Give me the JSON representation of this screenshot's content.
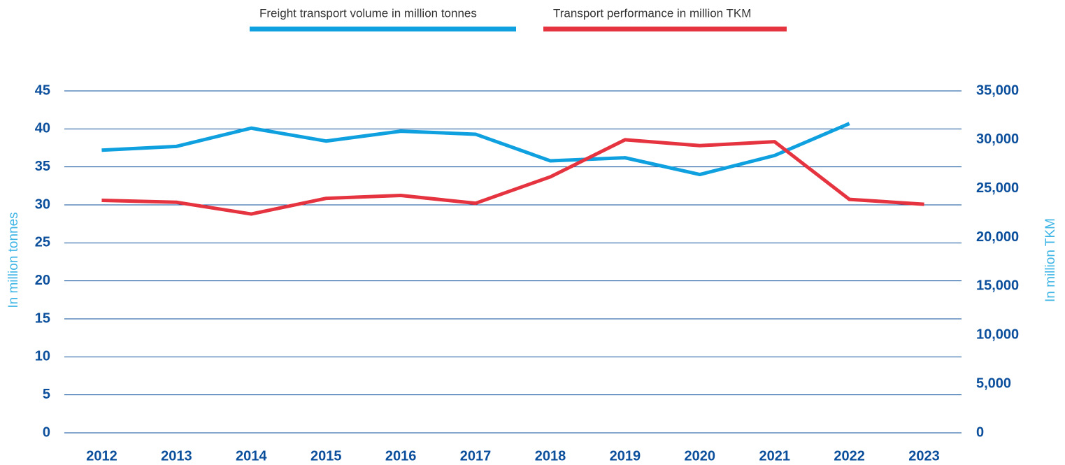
{
  "chart_data": {
    "type": "line",
    "categories": [
      "2012",
      "2013",
      "2014",
      "2015",
      "2016",
      "2017",
      "2018",
      "2019",
      "2020",
      "2021",
      "2022",
      "2023"
    ],
    "series": [
      {
        "name": "Freight transport volume in million tonnes",
        "color": "#0fa0df",
        "values": [
          37.2,
          37.7,
          40.1,
          38.4,
          39.7,
          39.3,
          35.8,
          36.2,
          34.0,
          36.5,
          40.7,
          null
        ]
      },
      {
        "name": "Transport performance in million TKM",
        "color": "#e5333f",
        "axis": "y2",
        "values": [
          23800,
          23600,
          22400,
          24000,
          24300,
          23500,
          26200,
          30000,
          29400,
          29800,
          23900,
          23400
        ]
      }
    ],
    "ylabel": "In million tonnes",
    "y2label": "In million TKM",
    "ylim": [
      0,
      45
    ],
    "yticks": [
      0,
      5,
      10,
      15,
      20,
      25,
      30,
      35,
      40,
      45
    ],
    "y2lim": [
      0,
      35000
    ],
    "y2ticks": [
      0,
      {
        "value": 5000,
        "label": "5,000"
      },
      {
        "value": 10000,
        "label": "10,000"
      },
      {
        "value": 15000,
        "label": "15,000"
      },
      {
        "value": 20000,
        "label": "20,000"
      },
      {
        "value": 25000,
        "label": "25,000"
      },
      {
        "value": 30000,
        "label": "30,000"
      },
      {
        "value": 35000,
        "label": "35,000"
      }
    ],
    "grid": true,
    "legend": "top"
  }
}
